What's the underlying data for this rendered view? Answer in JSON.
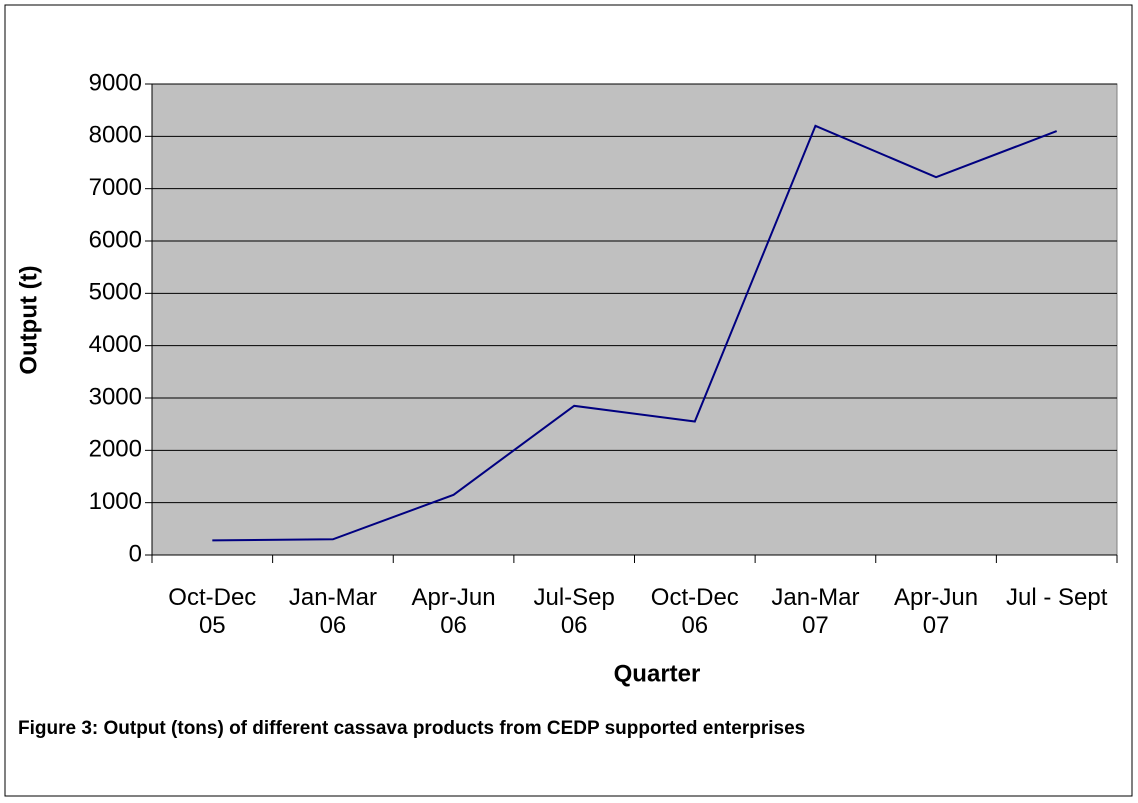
{
  "chart_data": {
    "type": "line",
    "caption": "Figure 3: Output (tons) of different cassava products from CEDP supported enterprises",
    "x_label": "Quarter",
    "y_label": "Output (t)",
    "categories": [
      "Oct-Dec\n05",
      "Jan-Mar\n06",
      "Apr-Jun\n06",
      "Jul-Sep\n06",
      "Oct-Dec\n06",
      "Jan-Mar\n07",
      "Apr-Jun\n07",
      "Jul - Sept"
    ],
    "series": [
      {
        "name": "Output",
        "color": "#000080",
        "values": [
          280,
          300,
          1150,
          2850,
          2550,
          8200,
          7220,
          8100
        ]
      }
    ],
    "ylim": [
      0,
      9000
    ],
    "yticks": [
      0,
      1000,
      2000,
      3000,
      4000,
      5000,
      6000,
      7000,
      8000,
      9000
    ],
    "grid": true,
    "legend": false
  }
}
